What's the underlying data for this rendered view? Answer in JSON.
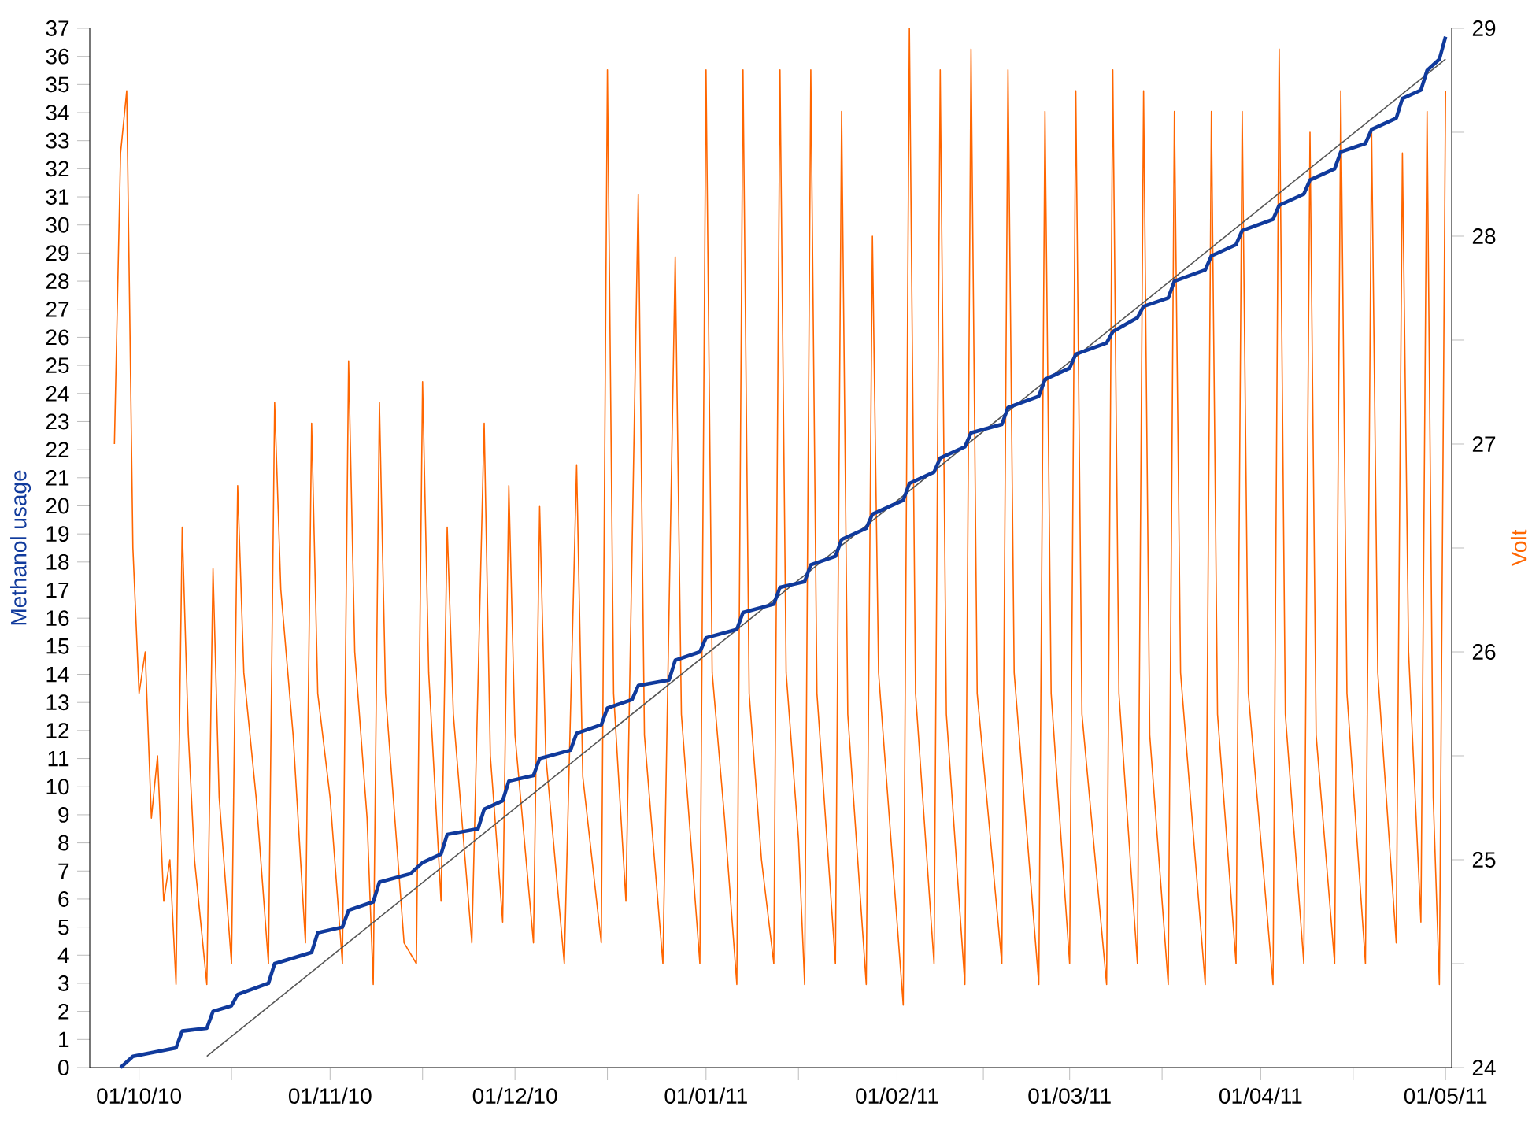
{
  "chart_data": {
    "type": "line",
    "ylabel": "Methanol usage",
    "y2label": "Volt",
    "xlim": [
      "2010-09-23",
      "2011-05-02"
    ],
    "xticks": [
      {
        "value": "2010-10-01",
        "label": "01/10/10"
      },
      {
        "value": "2010-10-16",
        "label": null
      },
      {
        "value": "2010-11-01",
        "label": "01/11/10"
      },
      {
        "value": "2010-11-16",
        "label": null
      },
      {
        "value": "2010-12-01",
        "label": "01/12/10"
      },
      {
        "value": "2010-12-16",
        "label": null
      },
      {
        "value": "2011-01-01",
        "label": "01/01/11"
      },
      {
        "value": "2011-01-16",
        "label": null
      },
      {
        "value": "2011-02-01",
        "label": "01/02/11"
      },
      {
        "value": "2011-02-15",
        "label": null
      },
      {
        "value": "2011-03-01",
        "label": "01/03/11"
      },
      {
        "value": "2011-03-16",
        "label": null
      },
      {
        "value": "2011-04-01",
        "label": "01/04/11"
      },
      {
        "value": "2011-04-16",
        "label": null
      },
      {
        "value": "2011-05-01",
        "label": "01/05/11"
      }
    ],
    "ylim": [
      0,
      37
    ],
    "yticks": [
      0,
      1,
      2,
      3,
      4,
      5,
      6,
      7,
      8,
      9,
      10,
      11,
      12,
      13,
      14,
      15,
      16,
      17,
      18,
      19,
      20,
      21,
      22,
      23,
      24,
      25,
      26,
      27,
      28,
      29,
      30,
      31,
      32,
      33,
      34,
      35,
      36,
      37
    ],
    "y2lim": [
      24,
      29
    ],
    "y2ticks": [
      24,
      {
        "value": 24.5,
        "label": null
      },
      25,
      {
        "value": 25.5,
        "label": null
      },
      26,
      {
        "value": 26.5,
        "label": null
      },
      27,
      {
        "value": 27.5,
        "label": null
      },
      28,
      {
        "value": 28.5,
        "label": null
      },
      29
    ],
    "series": [
      {
        "axis": "y2",
        "color": "#ff6600",
        "x": [
          "2010-09-27",
          "2010-09-28",
          "2010-09-29",
          "2010-09-30",
          "2010-10-01",
          "2010-10-02",
          "2010-10-03",
          "2010-10-04",
          "2010-10-05",
          "2010-10-06",
          "2010-10-07",
          "2010-10-08",
          "2010-10-09",
          "2010-10-10",
          "2010-10-12",
          "2010-10-13",
          "2010-10-14",
          "2010-10-16",
          "2010-10-17",
          "2010-10-18",
          "2010-10-20",
          "2010-10-22",
          "2010-10-23",
          "2010-10-24",
          "2010-10-26",
          "2010-10-28",
          "2010-10-29",
          "2010-10-30",
          "2010-11-01",
          "2010-11-03",
          "2010-11-04",
          "2010-11-05",
          "2010-11-07",
          "2010-11-08",
          "2010-11-09",
          "2010-11-10",
          "2010-11-13",
          "2010-11-15",
          "2010-11-16",
          "2010-11-17",
          "2010-11-19",
          "2010-11-20",
          "2010-11-21",
          "2010-11-24",
          "2010-11-26",
          "2010-11-27",
          "2010-11-29",
          "2010-11-30",
          "2010-12-01",
          "2010-12-04",
          "2010-12-05",
          "2010-12-06",
          "2010-12-09",
          "2010-12-11",
          "2010-12-12",
          "2010-12-15",
          "2010-12-16",
          "2010-12-17",
          "2010-12-19",
          "2010-12-21",
          "2010-12-22",
          "2010-12-25",
          "2010-12-27",
          "2010-12-28",
          "2010-12-31",
          "2011-01-01",
          "2011-01-02",
          "2011-01-04",
          "2011-01-06",
          "2011-01-07",
          "2011-01-08",
          "2011-01-10",
          "2011-01-12",
          "2011-01-13",
          "2011-01-14",
          "2011-01-16",
          "2011-01-17",
          "2011-01-18",
          "2011-01-19",
          "2011-01-22",
          "2011-01-23",
          "2011-01-24",
          "2011-01-27",
          "2011-01-28",
          "2011-01-29",
          "2011-02-02",
          "2011-02-03",
          "2011-02-04",
          "2011-02-07",
          "2011-02-08",
          "2011-02-09",
          "2011-02-12",
          "2011-02-13",
          "2011-02-14",
          "2011-02-18",
          "2011-02-19",
          "2011-02-20",
          "2011-02-24",
          "2011-02-25",
          "2011-02-26",
          "2011-03-01",
          "2011-03-02",
          "2011-03-03",
          "2011-03-07",
          "2011-03-08",
          "2011-03-09",
          "2011-03-12",
          "2011-03-13",
          "2011-03-14",
          "2011-03-17",
          "2011-03-18",
          "2011-03-19",
          "2011-03-23",
          "2011-03-24",
          "2011-03-25",
          "2011-03-28",
          "2011-03-29",
          "2011-03-30",
          "2011-04-03",
          "2011-04-04",
          "2011-04-05",
          "2011-04-08",
          "2011-04-09",
          "2011-04-10",
          "2011-04-13",
          "2011-04-14",
          "2011-04-15",
          "2011-04-18",
          "2011-04-19",
          "2011-04-20",
          "2011-04-23",
          "2011-04-24",
          "2011-04-25",
          "2011-04-27",
          "2011-04-28",
          "2011-04-29",
          "2011-04-30",
          "2011-05-01"
        ],
        "values": [
          27.0,
          28.4,
          28.7,
          26.5,
          25.8,
          26.0,
          25.2,
          25.5,
          24.8,
          25.0,
          24.4,
          26.6,
          25.6,
          25.0,
          24.4,
          26.4,
          25.3,
          24.5,
          26.8,
          25.9,
          25.3,
          24.5,
          27.2,
          26.3,
          25.6,
          24.6,
          27.1,
          25.8,
          25.3,
          24.5,
          27.4,
          26.0,
          25.2,
          24.4,
          27.2,
          25.8,
          24.6,
          24.5,
          27.3,
          25.9,
          24.8,
          26.6,
          25.7,
          24.6,
          27.1,
          25.5,
          24.7,
          26.8,
          25.6,
          24.6,
          26.7,
          25.5,
          24.5,
          26.9,
          25.4,
          24.6,
          28.8,
          25.8,
          24.8,
          28.2,
          25.6,
          24.5,
          27.9,
          25.7,
          24.5,
          28.8,
          25.9,
          25.2,
          24.4,
          28.8,
          25.8,
          25.0,
          24.5,
          28.8,
          25.9,
          25.1,
          24.4,
          28.8,
          25.8,
          24.5,
          28.6,
          25.7,
          24.4,
          28.0,
          25.9,
          24.3,
          29.0,
          25.8,
          24.5,
          28.8,
          25.7,
          24.4,
          28.9,
          25.8,
          24.5,
          28.8,
          25.9,
          24.4,
          28.6,
          25.8,
          24.5,
          28.7,
          25.7,
          24.4,
          28.8,
          25.8,
          24.5,
          28.7,
          25.6,
          24.4,
          28.6,
          25.9,
          24.4,
          28.6,
          25.7,
          24.5,
          28.6,
          25.8,
          24.4,
          28.9,
          25.7,
          24.5,
          28.5,
          25.6,
          24.5,
          28.7,
          25.8,
          24.5,
          28.5,
          25.9,
          24.6,
          28.4,
          26.0,
          24.7,
          28.6,
          25.3,
          24.4,
          28.7
        ]
      },
      {
        "color": "#555555",
        "x": [
          "2010-10-12",
          "2011-05-01"
        ],
        "values": [
          0.4,
          35.9
        ]
      },
      {
        "color": "#103a9c",
        "x": [
          "2010-09-28",
          "2010-09-30",
          "2010-10-07",
          "2010-10-08",
          "2010-10-12",
          "2010-10-13",
          "2010-10-16",
          "2010-10-17",
          "2010-10-22",
          "2010-10-23",
          "2010-10-29",
          "2010-10-30",
          "2010-11-03",
          "2010-11-04",
          "2010-11-08",
          "2010-11-09",
          "2010-11-14",
          "2010-11-16",
          "2010-11-19",
          "2010-11-20",
          "2010-11-25",
          "2010-11-26",
          "2010-11-29",
          "2010-11-30",
          "2010-12-04",
          "2010-12-05",
          "2010-12-10",
          "2010-12-11",
          "2010-12-15",
          "2010-12-16",
          "2010-12-20",
          "2010-12-21",
          "2010-12-26",
          "2010-12-27",
          "2010-12-31",
          "2011-01-01",
          "2011-01-06",
          "2011-01-07",
          "2011-01-12",
          "2011-01-13",
          "2011-01-17",
          "2011-01-18",
          "2011-01-22",
          "2011-01-23",
          "2011-01-27",
          "2011-01-28",
          "2011-02-02",
          "2011-02-03",
          "2011-02-07",
          "2011-02-08",
          "2011-02-12",
          "2011-02-13",
          "2011-02-18",
          "2011-02-19",
          "2011-02-24",
          "2011-02-25",
          "2011-03-01",
          "2011-03-02",
          "2011-03-07",
          "2011-03-08",
          "2011-03-12",
          "2011-03-13",
          "2011-03-17",
          "2011-03-18",
          "2011-03-23",
          "2011-03-24",
          "2011-03-28",
          "2011-03-29",
          "2011-04-03",
          "2011-04-04",
          "2011-04-08",
          "2011-04-09",
          "2011-04-13",
          "2011-04-14",
          "2011-04-18",
          "2011-04-19",
          "2011-04-23",
          "2011-04-24",
          "2011-04-27",
          "2011-04-28",
          "2011-04-30",
          "2011-05-01"
        ],
        "values": [
          0,
          0.4,
          0.7,
          1.3,
          1.4,
          2.0,
          2.2,
          2.6,
          3.0,
          3.7,
          4.1,
          4.8,
          5.0,
          5.6,
          5.9,
          6.6,
          6.9,
          7.3,
          7.6,
          8.3,
          8.5,
          9.2,
          9.5,
          10.2,
          10.4,
          11.0,
          11.3,
          11.9,
          12.2,
          12.8,
          13.1,
          13.6,
          13.8,
          14.5,
          14.8,
          15.3,
          15.6,
          16.2,
          16.5,
          17.1,
          17.3,
          17.9,
          18.2,
          18.8,
          19.2,
          19.7,
          20.2,
          20.8,
          21.2,
          21.7,
          22.1,
          22.6,
          22.9,
          23.5,
          23.9,
          24.5,
          24.9,
          25.4,
          25.8,
          26.2,
          26.7,
          27.1,
          27.4,
          28.0,
          28.4,
          28.9,
          29.3,
          29.8,
          30.2,
          30.7,
          31.1,
          31.6,
          32.0,
          32.6,
          32.9,
          33.4,
          33.8,
          34.5,
          34.8,
          35.5,
          35.9,
          36.7
        ]
      }
    ]
  }
}
